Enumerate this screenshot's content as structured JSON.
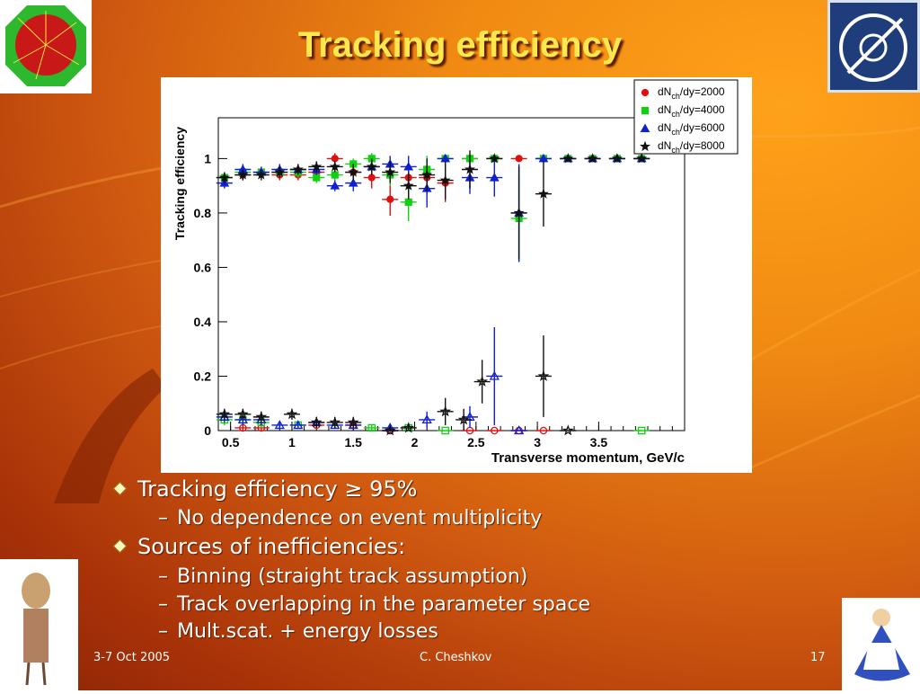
{
  "slide": {
    "title": "Tracking efficiency",
    "logo_left_text": "ALICE",
    "logo_right_text": "CERN",
    "bullets": [
      {
        "level": 1,
        "text": "Tracking efficiency ≥ 95%"
      },
      {
        "level": 2,
        "text": "No dependence on event multiplicity"
      },
      {
        "level": 1,
        "text": "Sources of inefficiencies:"
      },
      {
        "level": 2,
        "text": "Binning (straight track assumption)"
      },
      {
        "level": 2,
        "text": "Track overlapping in the parameter space"
      },
      {
        "level": 2,
        "text": "Mult.scat. + energy losses"
      }
    ],
    "footer": {
      "date": "3-7 Oct 2005",
      "author": "C. Cheshkov",
      "page": "17"
    },
    "colors": {
      "title": "#ffe84d",
      "text": "#ffffff"
    }
  },
  "chart_data": {
    "type": "scatter",
    "xlabel": "Transverse momentum, GeV/c",
    "ylabel": "Tracking efficiency",
    "xlim": [
      0.4,
      4.2
    ],
    "ylim": [
      0,
      1.15
    ],
    "xticks": [
      "0.5",
      "1",
      "1.5",
      "2",
      "2.5",
      "3",
      "3.5"
    ],
    "yticks": [
      "0",
      "0.2",
      "0.4",
      "0.6",
      "0.8",
      "1"
    ],
    "legend_position": "top-right",
    "series": [
      {
        "name": "dN/dy=2000",
        "legend_main": "dN",
        "legend_sub": "ch",
        "legend_tail": "/dy=2000",
        "color": "#e01010",
        "marker": "circle",
        "x": [
          0.45,
          0.6,
          0.75,
          0.9,
          1.05,
          1.2,
          1.35,
          1.5,
          1.65,
          1.8,
          1.95,
          2.1,
          2.25,
          2.45,
          2.65,
          2.85,
          3.05,
          3.25,
          3.45,
          3.65,
          3.85
        ],
        "y": [
          0.93,
          0.94,
          0.95,
          0.94,
          0.94,
          0.95,
          1.0,
          0.95,
          0.93,
          0.85,
          0.93,
          0.93,
          0.91,
          1.0,
          1.0,
          1.0,
          1.0,
          1.0,
          1.0,
          1.0,
          1.0
        ],
        "err": [
          0.02,
          0.02,
          0.02,
          0.02,
          0.02,
          0.02,
          0.02,
          0.03,
          0.04,
          0.06,
          0.05,
          0.06,
          0.07,
          0,
          0,
          0,
          0,
          0,
          0,
          0,
          0
        ]
      },
      {
        "name": "dN/dy=4000",
        "legend_main": "dN",
        "legend_sub": "ch",
        "legend_tail": "/dy=4000",
        "color": "#10d010",
        "marker": "square",
        "x": [
          0.45,
          0.6,
          0.75,
          0.9,
          1.05,
          1.2,
          1.35,
          1.5,
          1.65,
          1.8,
          1.95,
          2.1,
          2.25,
          2.45,
          2.65,
          2.85,
          3.05,
          3.25,
          3.45,
          3.65,
          3.85
        ],
        "y": [
          0.93,
          0.95,
          0.95,
          0.95,
          0.95,
          0.93,
          0.94,
          0.98,
          1.0,
          0.94,
          0.84,
          0.96,
          1.0,
          1.0,
          1.0,
          0.78,
          1.0,
          1.0,
          1.0,
          1.0,
          1.0
        ],
        "err": [
          0.02,
          0.02,
          0.02,
          0.02,
          0.02,
          0.02,
          0.02,
          0.02,
          0.02,
          0.04,
          0.07,
          0.05,
          0,
          0,
          0,
          0.16,
          0,
          0,
          0,
          0,
          0
        ]
      },
      {
        "name": "dN/dy=6000",
        "legend_main": "dN",
        "legend_sub": "ch",
        "legend_tail": "/dy=6000",
        "color": "#1020d0",
        "marker": "triangle",
        "x": [
          0.45,
          0.6,
          0.75,
          0.9,
          1.05,
          1.2,
          1.35,
          1.5,
          1.65,
          1.8,
          1.95,
          2.1,
          2.25,
          2.45,
          2.65,
          2.85,
          3.05,
          3.25,
          3.45,
          3.65,
          3.85
        ],
        "y": [
          0.91,
          0.96,
          0.95,
          0.96,
          0.96,
          0.96,
          0.9,
          0.91,
          0.97,
          0.98,
          0.97,
          0.89,
          1.0,
          0.93,
          0.93,
          0.8,
          1.0,
          1.0,
          1.0,
          1.0,
          1.0
        ],
        "err": [
          0.02,
          0.02,
          0.02,
          0.02,
          0.02,
          0.02,
          0.02,
          0.03,
          0.03,
          0.03,
          0.04,
          0.07,
          0,
          0.06,
          0.07,
          0.18,
          0,
          0,
          0,
          0,
          0
        ]
      },
      {
        "name": "dN/dy=8000",
        "legend_main": "dN",
        "legend_sub": "ch",
        "legend_tail": "/dy=8000",
        "color": "#111111",
        "marker": "star",
        "x": [
          0.45,
          0.6,
          0.75,
          0.9,
          1.05,
          1.2,
          1.35,
          1.5,
          1.65,
          1.8,
          1.95,
          2.1,
          2.25,
          2.45,
          2.65,
          2.85,
          3.05,
          3.25,
          3.45,
          3.65,
          3.85
        ],
        "y": [
          0.93,
          0.94,
          0.94,
          0.95,
          0.96,
          0.97,
          0.97,
          0.95,
          0.97,
          0.95,
          0.9,
          0.94,
          0.92,
          0.96,
          1.0,
          0.8,
          0.87,
          1.0,
          1.0,
          1.0,
          1.0
        ],
        "err": [
          0.02,
          0.02,
          0.02,
          0.02,
          0.02,
          0.02,
          0.02,
          0.03,
          0.03,
          0.04,
          0.05,
          0.06,
          0.07,
          0.07,
          0,
          0.17,
          0.12,
          0,
          0,
          0,
          0
        ]
      },
      {
        "name": "inefficiency 2000",
        "color": "#e01010",
        "marker": "open-circle",
        "x": [
          0.6,
          0.75,
          1.2,
          1.5,
          1.8,
          2.45,
          2.65,
          2.85,
          3.05
        ],
        "y": [
          0.01,
          0.01,
          0.02,
          0.02,
          0.0,
          0.0,
          0.0,
          0.0,
          0.0
        ],
        "err": [
          0.01,
          0.01,
          0.01,
          0.01,
          0.01,
          0,
          0,
          0,
          0
        ]
      },
      {
        "name": "inefficiency 4000",
        "color": "#10d010",
        "marker": "open-square",
        "x": [
          0.45,
          0.6,
          0.75,
          1.05,
          1.65,
          1.95,
          2.25,
          3.85
        ],
        "y": [
          0.04,
          0.04,
          0.03,
          0.02,
          0.01,
          0.01,
          0.0,
          0.0
        ],
        "err": [
          0.02,
          0.02,
          0.02,
          0.01,
          0.01,
          0.01,
          0,
          0
        ]
      },
      {
        "name": "inefficiency 6000",
        "color": "#1020d0",
        "marker": "open-triangle",
        "x": [
          0.45,
          0.6,
          0.75,
          0.9,
          1.05,
          1.2,
          1.35,
          1.5,
          1.8,
          2.1,
          2.45,
          2.65,
          2.85
        ],
        "y": [
          0.05,
          0.04,
          0.04,
          0.02,
          0.02,
          0.03,
          0.02,
          0.02,
          0.01,
          0.04,
          0.05,
          0.2,
          0.0
        ],
        "err": [
          0.02,
          0.02,
          0.02,
          0.01,
          0.01,
          0.02,
          0.01,
          0.01,
          0.01,
          0.03,
          0.04,
          0.18,
          0
        ]
      },
      {
        "name": "inefficiency 8000",
        "color": "#111111",
        "marker": "open-star",
        "x": [
          0.45,
          0.6,
          0.75,
          1.0,
          1.2,
          1.35,
          1.5,
          1.8,
          1.95,
          2.25,
          2.4,
          2.55,
          3.05,
          3.25
        ],
        "y": [
          0.06,
          0.06,
          0.05,
          0.06,
          0.03,
          0.03,
          0.03,
          0.0,
          0.01,
          0.07,
          0.04,
          0.18,
          0.2,
          0.0
        ],
        "err": [
          0.02,
          0.02,
          0.02,
          0.02,
          0.02,
          0.02,
          0.02,
          0.01,
          0.01,
          0.05,
          0.04,
          0.08,
          0.15,
          0
        ]
      }
    ]
  }
}
